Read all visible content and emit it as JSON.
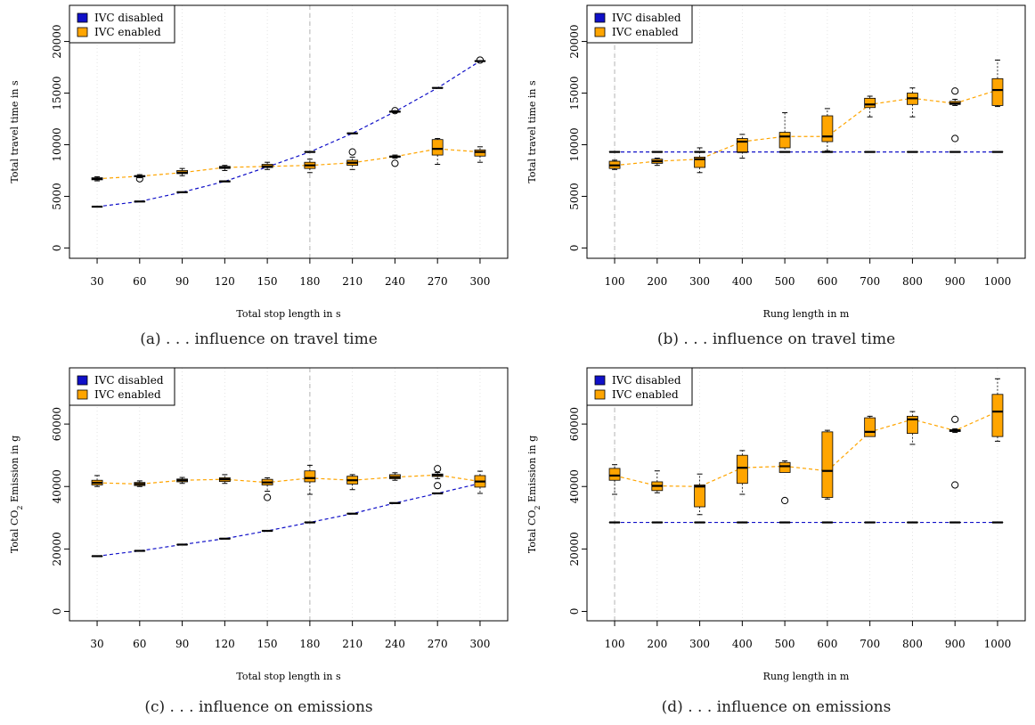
{
  "legend": {
    "disabled": "IVC disabled",
    "enabled": "IVC enabled"
  },
  "colors": {
    "disabled": "#1010c8",
    "enabled": "#ffa500",
    "outline": "#000000"
  },
  "chart_data": [
    {
      "id": "a",
      "type": "boxplot",
      "caption": "(a) . . . influence on travel time",
      "xlabel": "Total stop length in s",
      "ylabel": "Total travel time in s",
      "ylabel_html": "Total travel time in s",
      "categories": [
        "30",
        "60",
        "90",
        "120",
        "150",
        "180",
        "210",
        "240",
        "270",
        "300"
      ],
      "yticks": [
        0,
        5000,
        10000,
        15000,
        20000
      ],
      "ylim": [
        -1000,
        23500
      ],
      "highlight_index": 5,
      "legend_position": "top-left",
      "series": [
        {
          "name": "IVC disabled",
          "key": "disabled",
          "boxes": [
            [
              4000,
              4000,
              4000,
              4000,
              4000
            ],
            [
              4500,
              4500,
              4500,
              4500,
              4500
            ],
            [
              5400,
              5400,
              5400,
              5400,
              5400
            ],
            [
              6400,
              6400,
              6450,
              6500,
              6500
            ],
            [
              7800,
              7800,
              7850,
              7900,
              7900
            ],
            [
              9300,
              9300,
              9300,
              9300,
              9300
            ],
            [
              11100,
              11100,
              11100,
              11100,
              11100
            ],
            [
              13100,
              13150,
              13200,
              13250,
              13300
            ],
            [
              15500,
              15500,
              15500,
              15500,
              15500
            ],
            [
              18100,
              18100,
              18100,
              18100,
              18100
            ]
          ],
          "outliers": [
            [],
            [],
            [],
            [],
            [],
            [],
            [],
            [
              13300
            ],
            [],
            [
              18200
            ]
          ]
        },
        {
          "name": "IVC enabled",
          "key": "enabled",
          "boxes": [
            [
              6500,
              6600,
              6700,
              6800,
              6900
            ],
            [
              6800,
              6900,
              6950,
              7000,
              7100
            ],
            [
              7000,
              7200,
              7300,
              7500,
              7700
            ],
            [
              7500,
              7700,
              7800,
              7900,
              8000
            ],
            [
              7600,
              7800,
              7900,
              8100,
              8300
            ],
            [
              7300,
              7700,
              8000,
              8300,
              8600
            ],
            [
              7600,
              8000,
              8250,
              8500,
              8800
            ],
            [
              8700,
              8800,
              8850,
              8900,
              9000
            ],
            [
              8100,
              9000,
              9600,
              10500,
              10600
            ],
            [
              8300,
              8900,
              9300,
              9500,
              9800
            ]
          ],
          "outliers": [
            [],
            [
              6700
            ],
            [],
            [],
            [],
            [],
            [
              9300
            ],
            [
              8200
            ],
            [],
            []
          ]
        }
      ]
    },
    {
      "id": "b",
      "type": "boxplot",
      "caption": "(b) . . . influence on travel time",
      "xlabel": "Rung length in m",
      "ylabel": "Total travel time in s",
      "ylabel_html": "Total travel time in s",
      "categories": [
        "100",
        "200",
        "300",
        "400",
        "500",
        "600",
        "700",
        "800",
        "900",
        "1000"
      ],
      "yticks": [
        0,
        5000,
        10000,
        15000,
        20000
      ],
      "ylim": [
        -1000,
        23500
      ],
      "highlight_index": 0,
      "legend_position": "top-left",
      "series": [
        {
          "name": "IVC disabled",
          "key": "disabled",
          "boxes": [
            [
              9300,
              9300,
              9300,
              9300,
              9300
            ],
            [
              9300,
              9300,
              9300,
              9300,
              9300
            ],
            [
              9300,
              9300,
              9300,
              9300,
              9300
            ],
            [
              9300,
              9300,
              9300,
              9300,
              9300
            ],
            [
              9300,
              9300,
              9300,
              9300,
              9300
            ],
            [
              9300,
              9300,
              9300,
              9300,
              9300
            ],
            [
              9300,
              9300,
              9300,
              9300,
              9300
            ],
            [
              9300,
              9300,
              9300,
              9300,
              9300
            ],
            [
              9300,
              9300,
              9300,
              9300,
              9300
            ],
            [
              9300,
              9300,
              9300,
              9300,
              9300
            ]
          ],
          "outliers": [
            [],
            [],
            [],
            [],
            [],
            [],
            [],
            [],
            [],
            []
          ]
        },
        {
          "name": "IVC enabled",
          "key": "enabled",
          "boxes": [
            [
              7600,
              7700,
              8000,
              8400,
              8500
            ],
            [
              8000,
              8200,
              8400,
              8600,
              8700
            ],
            [
              7300,
              7800,
              8600,
              8800,
              9700
            ],
            [
              8700,
              9300,
              10300,
              10600,
              11000
            ],
            [
              9300,
              9700,
              10800,
              11200,
              13100
            ],
            [
              9400,
              10300,
              10800,
              12800,
              13500
            ],
            [
              12700,
              13600,
              13900,
              14500,
              14700
            ],
            [
              12700,
              13900,
              14500,
              15000,
              15500
            ],
            [
              13800,
              13900,
              14000,
              14200,
              14400
            ],
            [
              13700,
              13800,
              15300,
              16400,
              18200
            ]
          ],
          "outliers": [
            [],
            [],
            [],
            [],
            [],
            [],
            [],
            [],
            [
              10600,
              15200
            ],
            []
          ]
        }
      ]
    },
    {
      "id": "c",
      "type": "boxplot",
      "caption": "(c) . . . influence on emissions",
      "xlabel": "Total stop length in s",
      "ylabel": "Total CO2 Emission in g",
      "ylabel_html": "Total CO<tspan baseline-shift=\"sub\" font-size=\"8\">2</tspan> Emission in g",
      "categories": [
        "30",
        "60",
        "90",
        "120",
        "150",
        "180",
        "210",
        "240",
        "270",
        "300"
      ],
      "yticks": [
        0,
        20000,
        40000,
        60000
      ],
      "ylim": [
        -3000,
        78000
      ],
      "highlight_index": 5,
      "legend_position": "top-left",
      "series": [
        {
          "name": "IVC disabled",
          "key": "disabled",
          "boxes": [
            [
              17700,
              17700,
              17700,
              17700,
              17700
            ],
            [
              19400,
              19400,
              19400,
              19400,
              19400
            ],
            [
              21400,
              21400,
              21400,
              21400,
              21400
            ],
            [
              23200,
              23200,
              23300,
              23400,
              23400
            ],
            [
              25800,
              25800,
              25800,
              25800,
              25800
            ],
            [
              28500,
              28500,
              28500,
              28500,
              28500
            ],
            [
              31300,
              31300,
              31300,
              31300,
              31300
            ],
            [
              34600,
              34600,
              34700,
              34800,
              34800
            ],
            [
              37800,
              37800,
              37800,
              37800,
              37800
            ],
            [
              41000,
              41000,
              41000,
              41000,
              41000
            ]
          ],
          "outliers": [
            [],
            [],
            [],
            [],
            [],
            [],
            [],
            [],
            [],
            []
          ]
        },
        {
          "name": "IVC enabled",
          "key": "enabled",
          "boxes": [
            [
              40000,
              40500,
              41200,
              42000,
              43500
            ],
            [
              40000,
              40300,
              40800,
              41300,
              41800
            ],
            [
              41000,
              41500,
              42000,
              42400,
              42900
            ],
            [
              41000,
              41600,
              42300,
              42800,
              43800
            ],
            [
              38500,
              40500,
              41300,
              42300,
              42800
            ],
            [
              37500,
              41500,
              42700,
              45000,
              46800
            ],
            [
              39000,
              40800,
              42000,
              43300,
              43800
            ],
            [
              42000,
              42500,
              43000,
              43800,
              44400
            ],
            [
              42500,
              43200,
              43700,
              44000,
              44500
            ],
            [
              37800,
              39800,
              41600,
              43500,
              44900
            ]
          ],
          "outliers": [
            [],
            [],
            [],
            [],
            [
              36500
            ],
            [],
            [],
            [],
            [
              40300,
              45700
            ],
            []
          ]
        }
      ]
    },
    {
      "id": "d",
      "type": "boxplot",
      "caption": "(d) . . . influence on emissions",
      "xlabel": "Rung length in m",
      "ylabel": "Total CO2 Emission in g",
      "ylabel_html": "Total CO<tspan baseline-shift=\"sub\" font-size=\"8\">2</tspan> Emission in g",
      "categories": [
        "100",
        "200",
        "300",
        "400",
        "500",
        "600",
        "700",
        "800",
        "900",
        "1000"
      ],
      "yticks": [
        0,
        20000,
        40000,
        60000
      ],
      "ylim": [
        -3000,
        78000
      ],
      "highlight_index": 0,
      "legend_position": "top-left",
      "series": [
        {
          "name": "IVC disabled",
          "key": "disabled",
          "boxes": [
            [
              28500,
              28500,
              28500,
              28500,
              28500
            ],
            [
              28500,
              28500,
              28500,
              28500,
              28500
            ],
            [
              28500,
              28500,
              28500,
              28500,
              28500
            ],
            [
              28500,
              28500,
              28500,
              28500,
              28500
            ],
            [
              28500,
              28500,
              28500,
              28500,
              28500
            ],
            [
              28500,
              28500,
              28500,
              28500,
              28500
            ],
            [
              28500,
              28500,
              28500,
              28500,
              28500
            ],
            [
              28500,
              28500,
              28500,
              28500,
              28500
            ],
            [
              28500,
              28500,
              28500,
              28500,
              28500
            ],
            [
              28500,
              28500,
              28500,
              28500,
              28500
            ]
          ],
          "outliers": [
            [],
            [],
            [],
            [],
            [],
            [],
            [],
            [],
            [],
            []
          ]
        },
        {
          "name": "IVC enabled",
          "key": "enabled",
          "boxes": [
            [
              37500,
              42000,
              43500,
              45800,
              47000
            ],
            [
              38000,
              38700,
              40200,
              41500,
              45000
            ],
            [
              31000,
              33500,
              40000,
              40500,
              44000
            ],
            [
              37500,
              41000,
              46000,
              50000,
              51500
            ],
            [
              44500,
              44500,
              46500,
              47700,
              48200
            ],
            [
              36000,
              36500,
              45000,
              57500,
              58000
            ],
            [
              56000,
              56000,
              57500,
              62000,
              62500
            ],
            [
              53500,
              57000,
              61500,
              62500,
              64000
            ],
            [
              57300,
              57600,
              57900,
              58200,
              58500
            ],
            [
              54500,
              56000,
              64000,
              69500,
              74500
            ]
          ],
          "outliers": [
            [],
            [],
            [],
            [],
            [
              35500
            ],
            [],
            [],
            [],
            [
              40500,
              61500
            ],
            []
          ]
        }
      ]
    }
  ]
}
